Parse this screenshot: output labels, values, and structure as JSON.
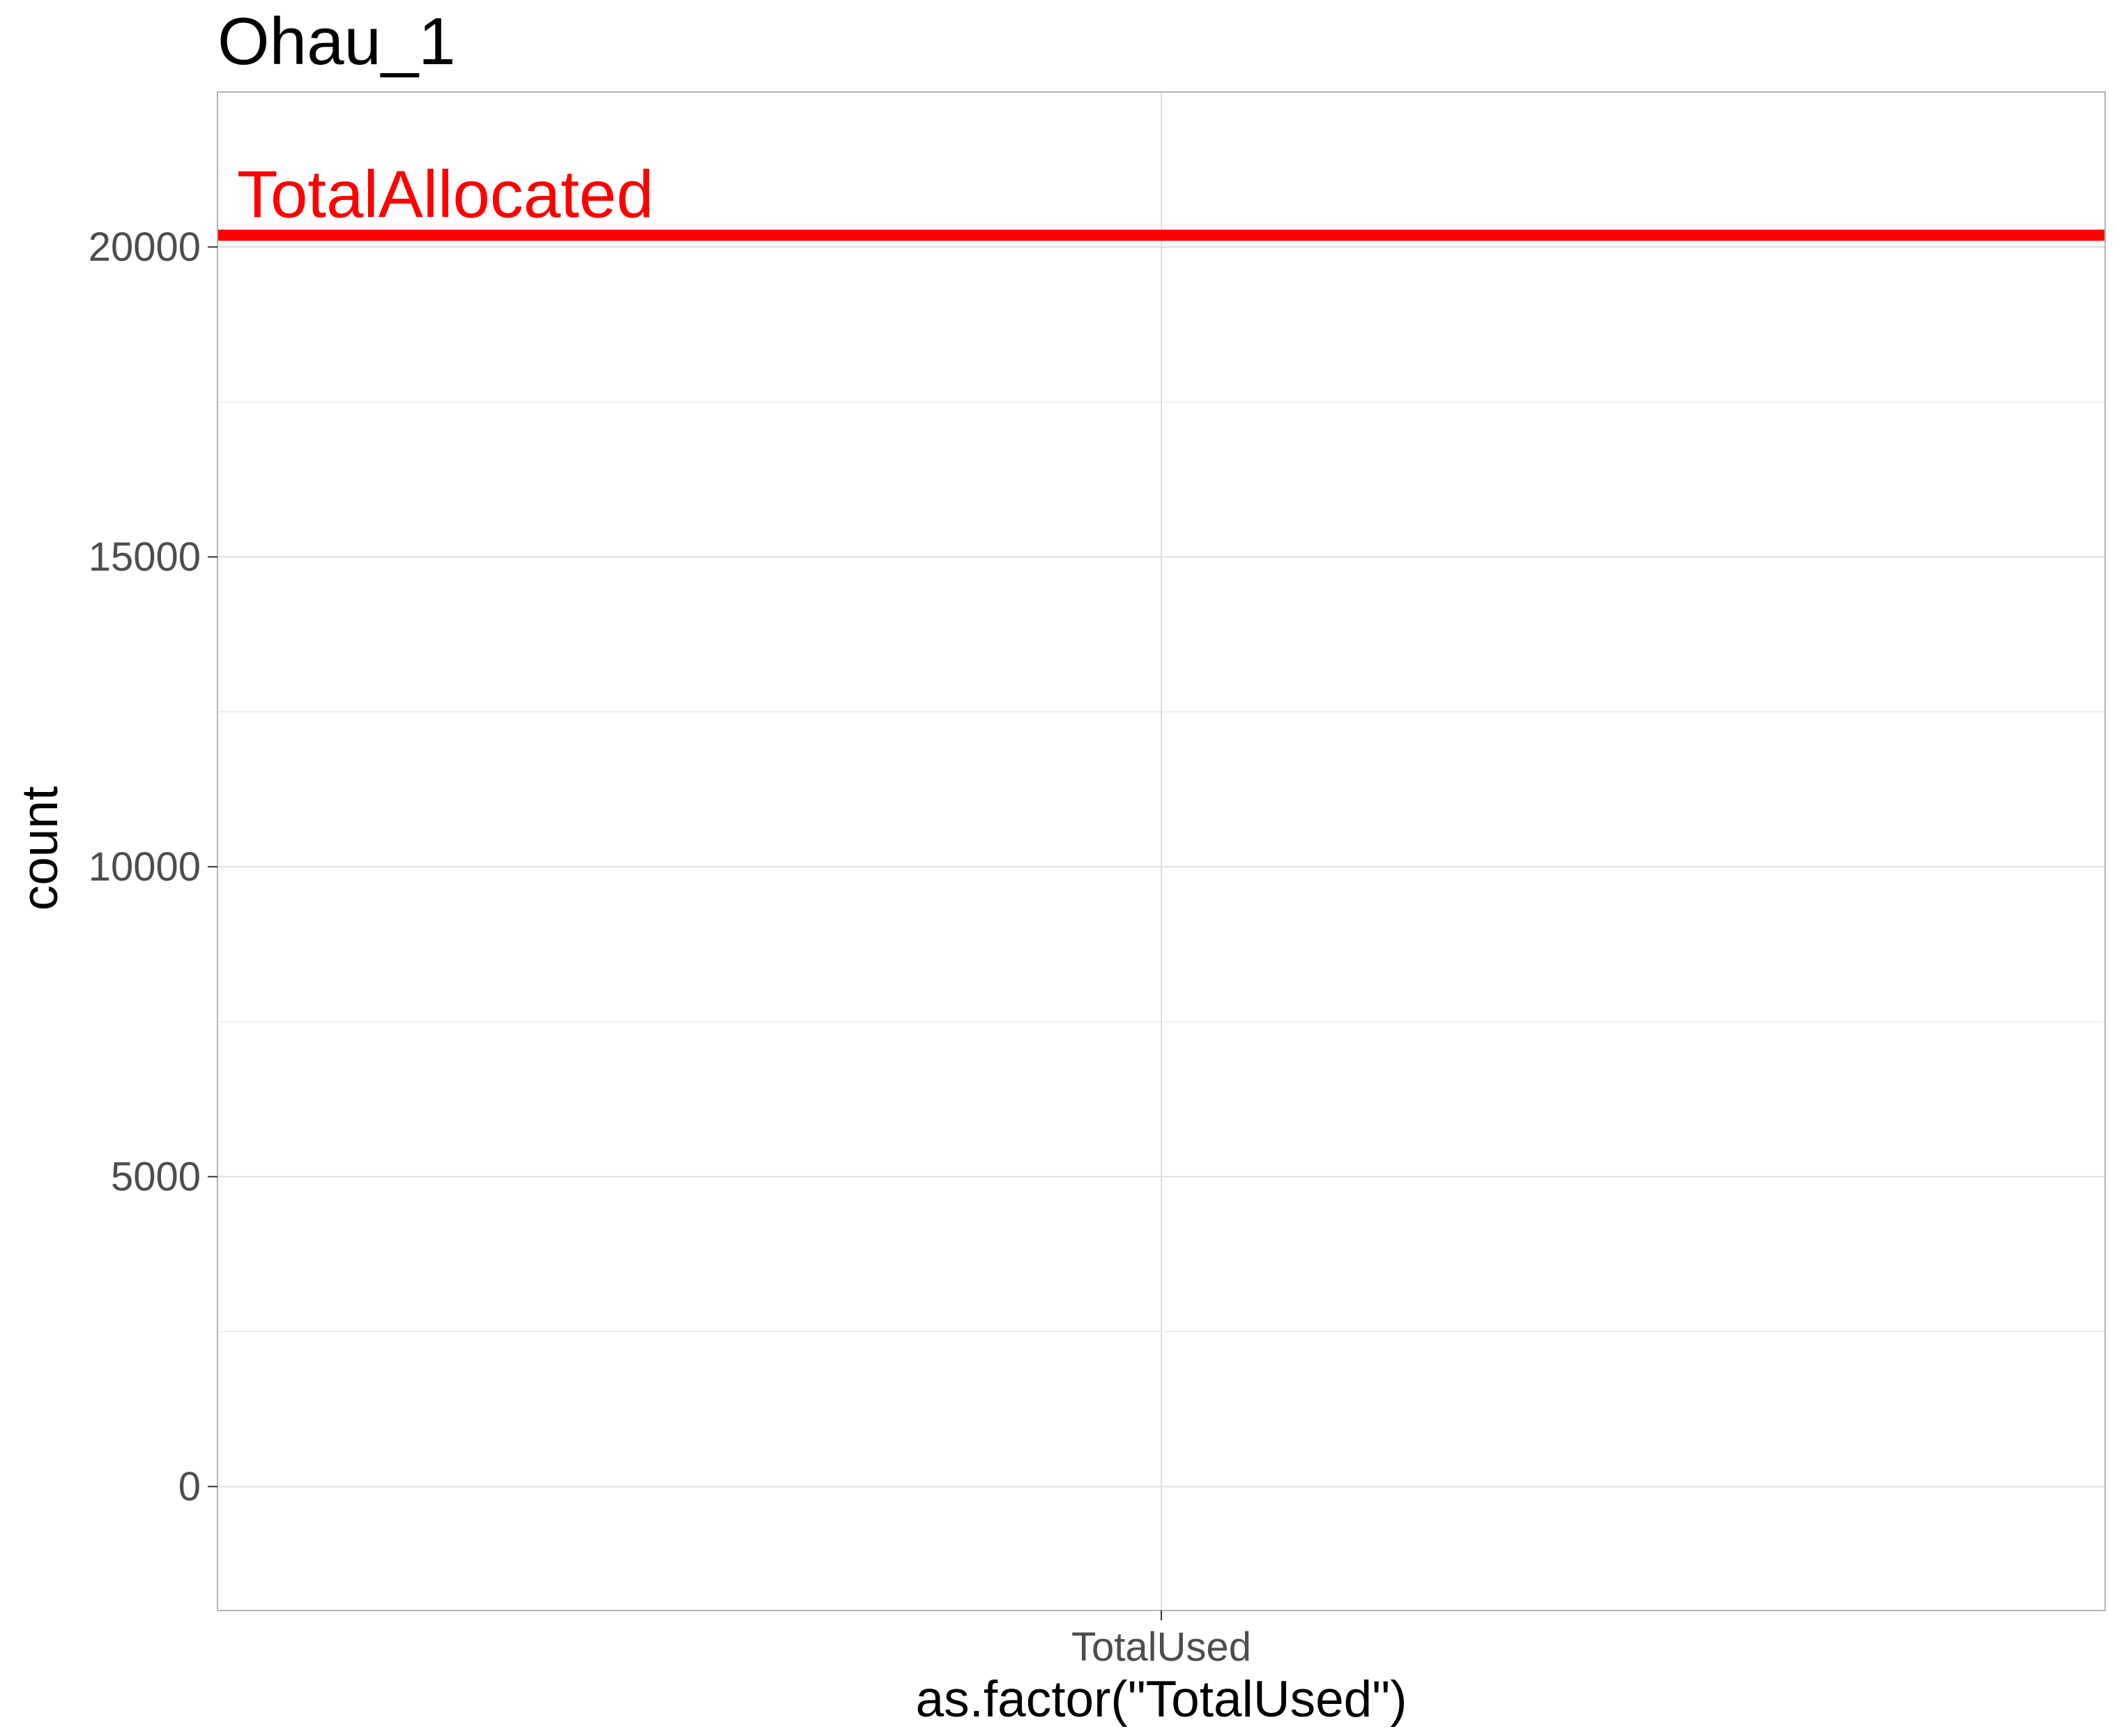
{
  "chart_data": {
    "type": "bar",
    "title": "Ohau_1",
    "xlabel": "as.factor(\"TotalUsed\")",
    "ylabel": "count",
    "categories": [
      "TotalUsed"
    ],
    "values": [
      0
    ],
    "ylim": [
      -2000,
      22500
    ],
    "yticks": [
      0,
      5000,
      10000,
      15000,
      20000
    ],
    "y_minor_ticks": [
      2500,
      7500,
      12500,
      17500
    ],
    "grid": true,
    "legend": "none",
    "reference_lines": [
      {
        "label": "TotalAllocated",
        "value": 20190,
        "color": "#ff0000"
      }
    ],
    "colors": {
      "panel_border": "#b3b3b3",
      "grid_major": "#dedede",
      "grid_minor": "#efefef",
      "tick_label": "#4d4d4d",
      "axis_title": "#000000",
      "title": "#000000"
    }
  }
}
